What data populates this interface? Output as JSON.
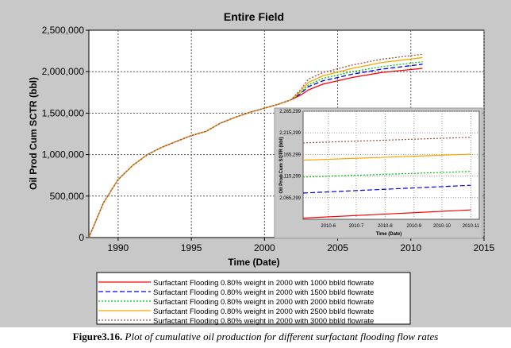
{
  "caption": {
    "label": "Figure3.16.",
    "text": " Plot of cumulative oil production for different surfactant flooding flow rates"
  },
  "chart_data": [
    {
      "type": "line",
      "title": "Entire  Field",
      "xlabel": "Time (Date)",
      "ylabel": "Oil Prod Cum SCTR (bbl)",
      "xlim": [
        1988,
        2015
      ],
      "ylim": [
        0,
        2500000
      ],
      "xticks": [
        1990,
        1995,
        2000,
        2005,
        2010,
        2015
      ],
      "yticks": [
        0,
        500000,
        1000000,
        1500000,
        2000000,
        2500000
      ],
      "ytick_labels": [
        "0",
        "500,000",
        "1,000,000",
        "1,500,000",
        "2,000,000",
        "2,500,000"
      ],
      "grid": true,
      "legend_placement": "bottom",
      "common_x": [
        1988,
        1989,
        1990,
        1991,
        1992,
        1993,
        1994,
        1995,
        1996,
        1997,
        1998,
        1999,
        2000,
        2001,
        2001.8
      ],
      "common_y": [
        0,
        420000,
        700000,
        870000,
        1000000,
        1090000,
        1160000,
        1230000,
        1280000,
        1380000,
        1450000,
        1510000,
        1560000,
        1610000,
        1660000
      ],
      "series": [
        {
          "name": "Surfactant Flooding 0.80% weight in 2000 with 1000 bbl/d flowrate",
          "color": "#ff0000",
          "dash": "solid",
          "x": [
            2002.5,
            2003,
            2004,
            2006,
            2008,
            2010.8
          ],
          "y": [
            1720000,
            1780000,
            1850000,
            1930000,
            1990000,
            2040000
          ]
        },
        {
          "name": "Surfactant Flooding 0.80% weight in 2000 with 1500 bbl/d flowrate",
          "color": "#0000ff",
          "dash": "dashed",
          "x": [
            2002.5,
            2003,
            2004,
            2006,
            2008,
            2010.8
          ],
          "y": [
            1740000,
            1820000,
            1890000,
            1970000,
            2030000,
            2090000
          ]
        },
        {
          "name": "Surfactant Flooding 0.80% weight in 2000 with 2000 bbl/d flowrate",
          "color": "#00cc00",
          "dash": "dotted",
          "x": [
            2002.5,
            2003,
            2004,
            2006,
            2008,
            2010.8
          ],
          "y": [
            1750000,
            1840000,
            1920000,
            2000000,
            2060000,
            2120000
          ]
        },
        {
          "name": "Surfactant Flooding 0.80% weight in 2000 with 2500 bbl/d flowrate",
          "color": "#ffa500",
          "dash": "solid",
          "x": [
            2002.5,
            2003,
            2004,
            2006,
            2008,
            2010.8
          ],
          "y": [
            1770000,
            1870000,
            1950000,
            2040000,
            2110000,
            2170000
          ]
        },
        {
          "name": "Surfactant Flooding 0.80% weight in 2000 with 3000 bbl/d flowrate",
          "color": "#a05040",
          "dash": "dotted",
          "x": [
            2002.5,
            2003,
            2004,
            2006,
            2008,
            2010.8
          ],
          "y": [
            1790000,
            1910000,
            1990000,
            2080000,
            2150000,
            2210000
          ]
        }
      ]
    },
    {
      "type": "line",
      "xlabel": "Time (Date)",
      "ylabel": "Oil Prod Cum SCTR (bbl)",
      "xticks": [
        "2010-6",
        "2010-7",
        "2010-8",
        "2010-9",
        "2010-10",
        "2010-11"
      ],
      "xlim": [
        "2010-05-05",
        "2010-11-10"
      ],
      "ylim": [
        2015299,
        2265299
      ],
      "ytick_labels": [
        "2,065,299",
        "2,115,299",
        "2,165,299",
        "2,215,299",
        "2,265,299"
      ],
      "yticks": [
        2065299,
        2115299,
        2165299,
        2215299,
        2265299
      ],
      "grid": true,
      "series": [
        {
          "color": "#ff0000",
          "dash": "solid",
          "x": [
            "2010-05-05",
            "2010-11-01"
          ],
          "y": [
            2018000,
            2037000
          ]
        },
        {
          "color": "#0000ff",
          "dash": "dashed",
          "x": [
            "2010-05-05",
            "2010-11-01"
          ],
          "y": [
            2076000,
            2094000
          ]
        },
        {
          "color": "#00cc00",
          "dash": "dotted",
          "x": [
            "2010-05-05",
            "2010-11-01"
          ],
          "y": [
            2113000,
            2126000
          ]
        },
        {
          "color": "#ffa500",
          "dash": "solid",
          "x": [
            "2010-05-05",
            "2010-11-01"
          ],
          "y": [
            2152000,
            2166000
          ]
        },
        {
          "color": "#a05040",
          "dash": "dotted",
          "x": [
            "2010-05-05",
            "2010-11-01"
          ],
          "y": [
            2192000,
            2205000
          ]
        }
      ]
    }
  ]
}
